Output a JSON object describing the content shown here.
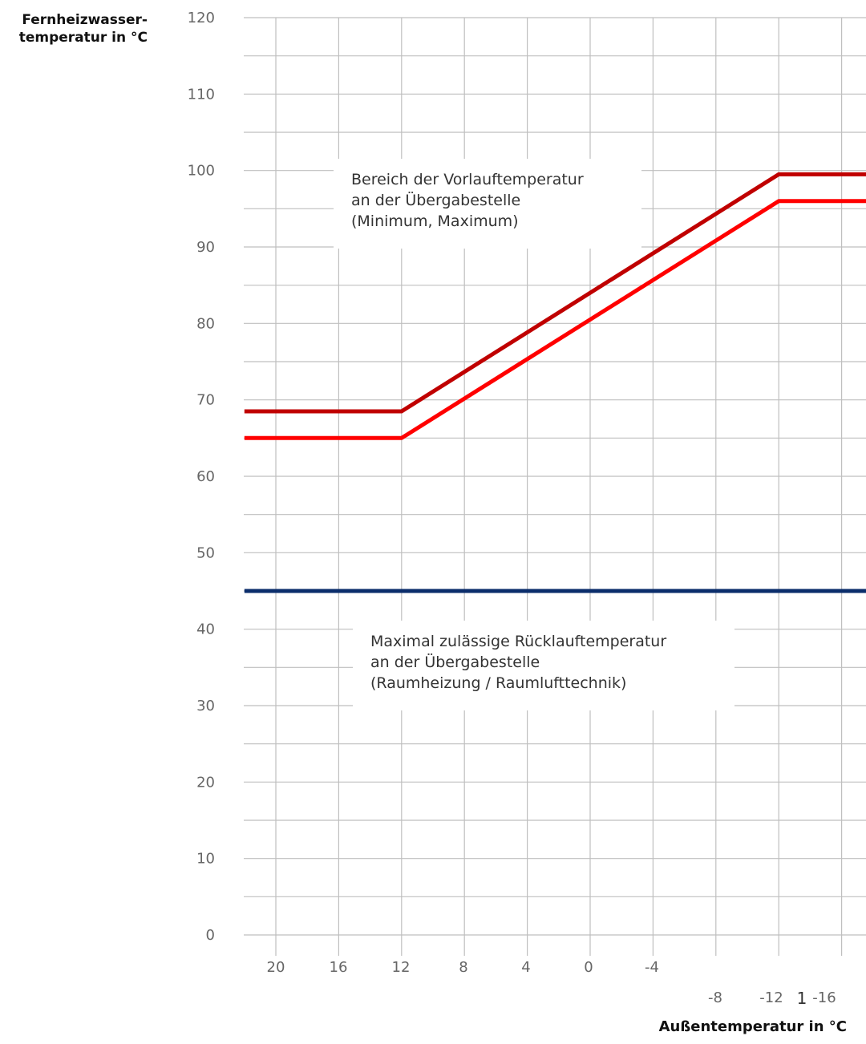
{
  "chart_data": {
    "type": "line",
    "ylabel": "Fernheizwasser-\ntemperatur in °C",
    "xlabel": "Außentemperatur in °C",
    "ylim": [
      0,
      120
    ],
    "yticks": [
      0,
      10,
      20,
      30,
      40,
      50,
      60,
      70,
      80,
      90,
      100,
      110,
      120
    ],
    "xticks": [
      "20",
      "16",
      "12",
      "8",
      "4",
      "0",
      "-4",
      "-8",
      "-12",
      "-16"
    ],
    "extra_label": "1",
    "grid": true,
    "series": [
      {
        "color": "#c00000",
        "x": [
          22,
          12,
          -12,
          -18
        ],
        "y": [
          68.5,
          68.5,
          99.5,
          99.5
        ]
      },
      {
        "color": "#ff0000",
        "x": [
          22,
          12,
          -12,
          -18
        ],
        "y": [
          65,
          65,
          96,
          96
        ]
      },
      {
        "color": "#0b2d6b",
        "x": [
          22,
          -18
        ],
        "y": [
          45,
          45
        ]
      }
    ],
    "annotations": [
      {
        "text": [
          "Bereich der Vorlauftemperatur",
          "an der Übergabestelle",
          "(Minimum, Maximum)"
        ]
      },
      {
        "text": [
          "Maximal zulässige Rücklauftemperatur",
          "an der Übergabestelle",
          "(Raumheizung / Raumlufttechnik)"
        ]
      }
    ]
  }
}
